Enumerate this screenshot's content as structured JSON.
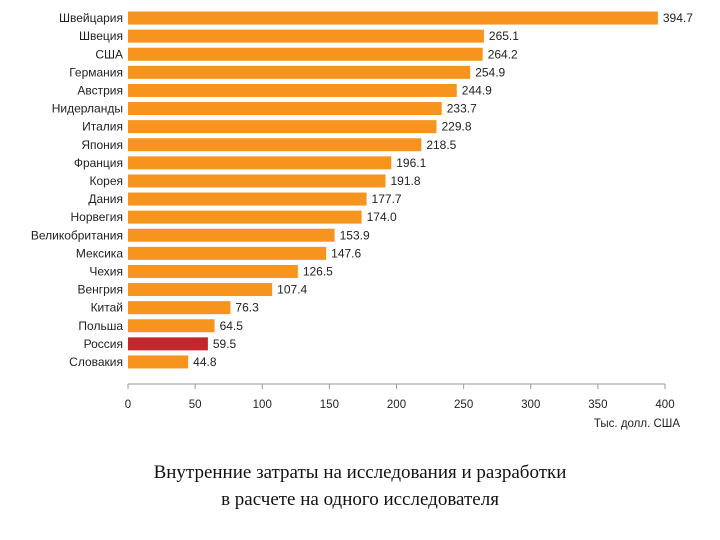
{
  "chart_data": {
    "type": "bar",
    "orientation": "horizontal",
    "categories": [
      "Швейцария",
      "Швеция",
      "США",
      "Германия",
      "Австрия",
      "Нидерланды",
      "Италия",
      "Япония",
      "Франция",
      "Корея",
      "Дания",
      "Норвегия",
      "Великобритания",
      "Мексика",
      "Чехия",
      "Венгрия",
      "Китай",
      "Польша",
      "Россия",
      "Словакия"
    ],
    "values": [
      394.7,
      265.1,
      264.2,
      254.9,
      244.9,
      233.7,
      229.8,
      218.5,
      196.1,
      191.8,
      177.7,
      174.0,
      153.9,
      147.6,
      126.5,
      107.4,
      76.3,
      64.5,
      59.5,
      44.8
    ],
    "value_labels": [
      "394.7",
      "265.1",
      "264.2",
      "254.9",
      "244.9",
      "233.7",
      "229.8",
      "218.5",
      "196.1",
      "191.8",
      "177.7",
      "174.0",
      "153.9",
      "147.6",
      "126.5",
      "107.4",
      "76.3",
      "64.5",
      "59.5",
      "44.8"
    ],
    "highlight": "Россия",
    "xlim": [
      0,
      400
    ],
    "xticks": [
      0,
      50,
      100,
      150,
      200,
      250,
      300,
      350,
      400
    ],
    "xlabel": "Тыс. долл. США",
    "colors": {
      "bar": "#f7941d",
      "highlight": "#c1272d",
      "axis": "#999999"
    },
    "grid": false
  },
  "caption": {
    "line1": "Внутренние затраты на исследования и разработки",
    "line2": "в расчете на одного исследователя"
  }
}
